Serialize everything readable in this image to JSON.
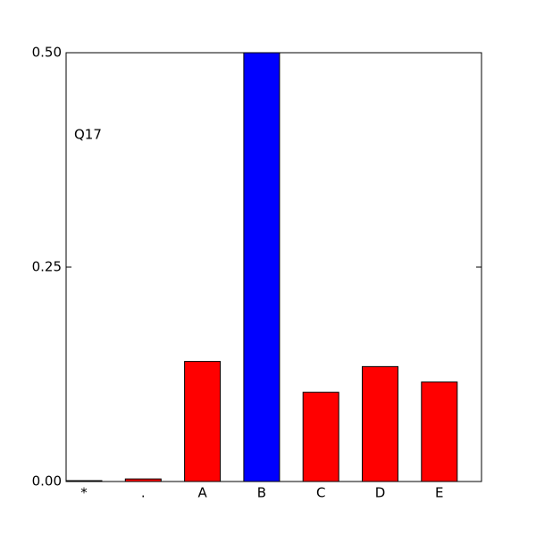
{
  "chart_data": {
    "type": "bar",
    "annotation": "Q17",
    "categories": [
      "*",
      ".",
      "A",
      "B",
      "C",
      "D",
      "E"
    ],
    "values": [
      0.001,
      0.003,
      0.14,
      0.5,
      0.104,
      0.134,
      0.116
    ],
    "colors": [
      "#ff0000",
      "#ff0000",
      "#ff0000",
      "#0000ff",
      "#ff0000",
      "#ff0000",
      "#ff0000"
    ],
    "ylim": [
      0,
      0.5
    ],
    "yticks": [
      {
        "value": 0,
        "label": "0.00"
      },
      {
        "value": 0.25,
        "label": "0.25"
      },
      {
        "value": 0.5,
        "label": "0.50"
      }
    ]
  }
}
